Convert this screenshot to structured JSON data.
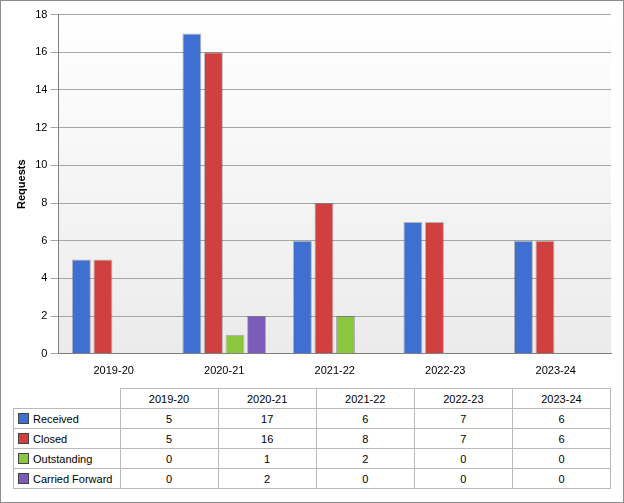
{
  "chart_data": {
    "type": "bar",
    "ylabel": "Requests",
    "categories": [
      "2019-20",
      "2020-21",
      "2021-22",
      "2022-23",
      "2023-24"
    ],
    "series": [
      {
        "name": "Received",
        "color": "#3f6fd0",
        "values": [
          5,
          17,
          6,
          7,
          6
        ]
      },
      {
        "name": "Closed",
        "color": "#d0403f",
        "values": [
          5,
          16,
          8,
          7,
          6
        ]
      },
      {
        "name": "Outstanding",
        "color": "#8cc63f",
        "values": [
          0,
          1,
          2,
          0,
          0
        ]
      },
      {
        "name": "Carried Forward",
        "color": "#7b5cb8",
        "values": [
          0,
          2,
          0,
          0,
          0
        ]
      }
    ],
    "ylim": [
      0,
      18
    ],
    "yticks": [
      0,
      2,
      4,
      6,
      8,
      10,
      12,
      14,
      16,
      18
    ],
    "grid": true
  }
}
